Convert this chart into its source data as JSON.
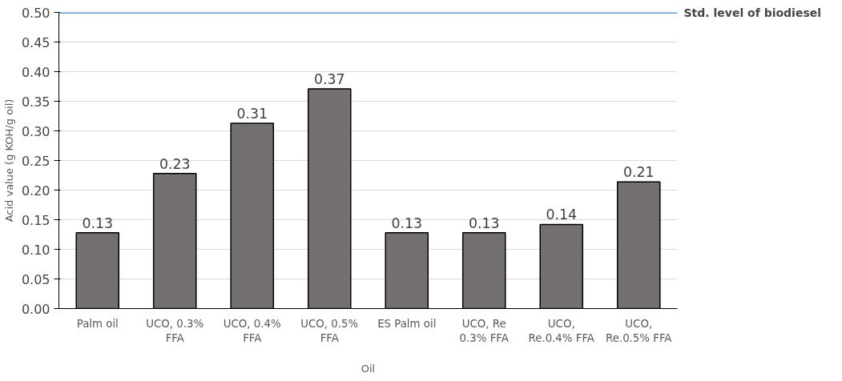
{
  "chart_data": {
    "type": "bar",
    "xlabel": "Oil",
    "ylabel": "Acid value (g KOH/g oil)",
    "categories": [
      "Palm oil",
      "UCO, 0.3% FFA",
      "UCO, 0.4% FFA",
      "UCO, 0.5% FFA",
      "ES Palm oil",
      "UCO, Re 0.3% FFA",
      "UCO, Re.0.4% FFA",
      "UCO, Re.0.5% FFA"
    ],
    "values": [
      0.128,
      0.228,
      0.313,
      0.371,
      0.128,
      0.128,
      0.142,
      0.214
    ],
    "value_labels": [
      "0.13",
      "0.23",
      "0.31",
      "0.37",
      "0.13",
      "0.13",
      "0.14",
      "0.21"
    ],
    "color": "#757070",
    "ylim": [
      0,
      0.5
    ],
    "yticks": [
      {
        "value": 0,
        "label": "0.00"
      },
      {
        "value": 0.05,
        "label": "0.05"
      },
      {
        "value": 0.1,
        "label": "0.10"
      },
      {
        "value": 0.15,
        "label": "0.15"
      },
      {
        "value": 0.2,
        "label": "0.20"
      },
      {
        "value": 0.25,
        "label": "0.25"
      },
      {
        "value": 0.3,
        "label": "0.30"
      },
      {
        "value": 0.35,
        "label": "0.35"
      },
      {
        "value": 0.4,
        "label": "0.40"
      },
      {
        "value": 0.45,
        "label": "0.45"
      },
      {
        "value": 0.5,
        "label": "0.50"
      }
    ],
    "grid": "y",
    "ref_lines": [
      {
        "axis": "y",
        "value": 0.5,
        "label": "Std. level of biodiesel",
        "color": "#5b9bd5"
      }
    ]
  }
}
